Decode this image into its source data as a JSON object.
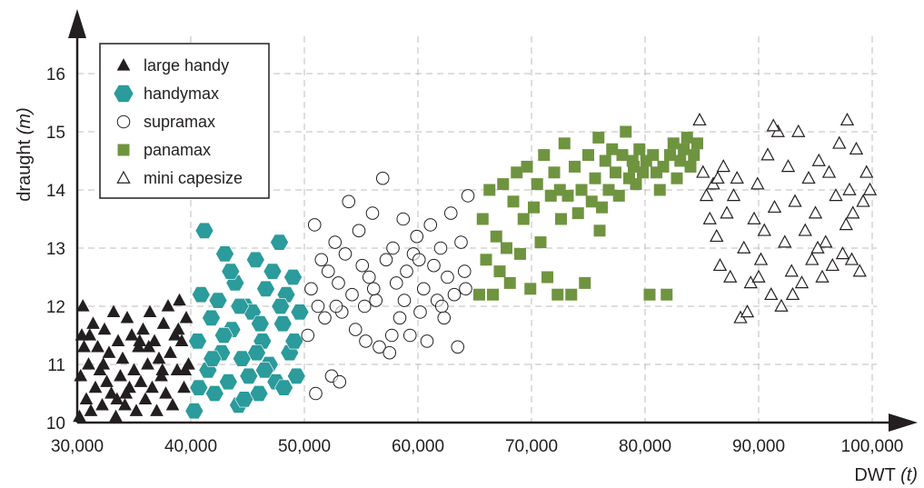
{
  "chart_data": {
    "type": "scatter",
    "xlabel": "DWT",
    "xlabel_unit": "(t)",
    "ylabel": "draught",
    "ylabel_unit": "(m)",
    "xlim": [
      30000,
      100000
    ],
    "ylim": [
      10,
      16.6
    ],
    "x_ticks": [
      30000,
      40000,
      50000,
      60000,
      70000,
      80000,
      90000,
      100000
    ],
    "x_tick_labels": [
      "30,000",
      "40,000",
      "50,000",
      "60,000",
      "70,000",
      "80,000",
      "90,000",
      "100,000"
    ],
    "y_ticks": [
      10,
      11,
      12,
      13,
      14,
      15,
      16
    ],
    "y_tick_labels": [
      "10",
      "11",
      "12",
      "13",
      "14",
      "15",
      "16"
    ],
    "grid": true,
    "legend_position": "top-left",
    "colors": {
      "handymax": "#2b9b9b",
      "panamax": "#6f9440",
      "ink": "#231f20",
      "grid": "#bdbdbd"
    },
    "series": [
      {
        "name": "large handy",
        "marker": "filled-triangle",
        "color": "#231f20",
        "points": [
          [
            30200,
            10.1
          ],
          [
            30300,
            10.8
          ],
          [
            30400,
            11.5
          ],
          [
            30500,
            12.0
          ],
          [
            30800,
            10.4
          ],
          [
            31000,
            11.0
          ],
          [
            31200,
            10.2
          ],
          [
            31400,
            11.7
          ],
          [
            31600,
            10.6
          ],
          [
            31800,
            11.3
          ],
          [
            32000,
            10.9
          ],
          [
            32200,
            10.3
          ],
          [
            32400,
            11.6
          ],
          [
            32600,
            10.7
          ],
          [
            32800,
            11.2
          ],
          [
            33000,
            10.5
          ],
          [
            33200,
            11.9
          ],
          [
            33400,
            10.1
          ],
          [
            33600,
            11.4
          ],
          [
            33800,
            10.8
          ],
          [
            34000,
            11.1
          ],
          [
            34200,
            10.3
          ],
          [
            34400,
            11.8
          ],
          [
            34600,
            10.6
          ],
          [
            34800,
            11.5
          ],
          [
            35000,
            10.9
          ],
          [
            35200,
            10.2
          ],
          [
            35400,
            11.3
          ],
          [
            35600,
            10.7
          ],
          [
            35800,
            11.6
          ],
          [
            36000,
            10.4
          ],
          [
            36200,
            11.0
          ],
          [
            36400,
            11.9
          ],
          [
            36600,
            10.6
          ],
          [
            36800,
            11.4
          ],
          [
            37000,
            10.2
          ],
          [
            37200,
            11.1
          ],
          [
            37400,
            10.8
          ],
          [
            37600,
            11.7
          ],
          [
            37800,
            10.5
          ],
          [
            38000,
            12.0
          ],
          [
            38200,
            11.2
          ],
          [
            38400,
            10.3
          ],
          [
            38600,
            11.5
          ],
          [
            38800,
            10.9
          ],
          [
            39000,
            12.1
          ],
          [
            39200,
            11.4
          ],
          [
            39400,
            10.6
          ],
          [
            39600,
            11.8
          ],
          [
            39800,
            11.0
          ],
          [
            31100,
            11.5
          ],
          [
            33500,
            10.4
          ],
          [
            35500,
            11.4
          ],
          [
            37500,
            10.9
          ],
          [
            38900,
            11.6
          ],
          [
            32300,
            11.0
          ],
          [
            34300,
            10.5
          ],
          [
            36300,
            11.3
          ],
          [
            30600,
            11.3
          ],
          [
            39500,
            10.9
          ]
        ]
      },
      {
        "name": "handymax",
        "marker": "filled-hexagon",
        "color": "#2b9b9b",
        "points": [
          [
            40300,
            10.2
          ],
          [
            40600,
            11.4
          ],
          [
            40900,
            12.2
          ],
          [
            41200,
            13.3
          ],
          [
            41500,
            10.9
          ],
          [
            41800,
            11.8
          ],
          [
            42100,
            10.5
          ],
          [
            42400,
            12.1
          ],
          [
            42700,
            11.2
          ],
          [
            43000,
            12.9
          ],
          [
            43300,
            10.7
          ],
          [
            43600,
            11.6
          ],
          [
            43900,
            12.4
          ],
          [
            44200,
            10.3
          ],
          [
            44500,
            11.1
          ],
          [
            44800,
            12.0
          ],
          [
            45100,
            10.8
          ],
          [
            45400,
            11.9
          ],
          [
            45700,
            12.8
          ],
          [
            46000,
            10.5
          ],
          [
            46300,
            11.4
          ],
          [
            46600,
            12.3
          ],
          [
            46900,
            11.0
          ],
          [
            47200,
            12.6
          ],
          [
            47500,
            10.7
          ],
          [
            47800,
            13.1
          ],
          [
            48100,
            11.7
          ],
          [
            48400,
            12.2
          ],
          [
            48700,
            11.2
          ],
          [
            49000,
            12.5
          ],
          [
            49300,
            10.8
          ],
          [
            49600,
            11.9
          ],
          [
            40700,
            10.6
          ],
          [
            42900,
            11.5
          ],
          [
            44700,
            10.4
          ],
          [
            46500,
            10.9
          ],
          [
            48200,
            10.6
          ],
          [
            43500,
            12.6
          ],
          [
            45800,
            11.2
          ],
          [
            47900,
            12.0
          ],
          [
            49100,
            11.4
          ],
          [
            41900,
            11.1
          ],
          [
            44300,
            12.0
          ],
          [
            46100,
            11.7
          ]
        ]
      },
      {
        "name": "supramax",
        "marker": "open-circle",
        "color": "#231f20",
        "points": [
          [
            50300,
            11.5
          ],
          [
            50600,
            12.3
          ],
          [
            50900,
            13.4
          ],
          [
            51200,
            12.0
          ],
          [
            51500,
            12.8
          ],
          [
            51800,
            11.8
          ],
          [
            52100,
            12.6
          ],
          [
            52400,
            10.8
          ],
          [
            52700,
            13.1
          ],
          [
            53000,
            12.4
          ],
          [
            53300,
            11.9
          ],
          [
            53600,
            12.9
          ],
          [
            53900,
            13.8
          ],
          [
            54200,
            12.2
          ],
          [
            54500,
            11.6
          ],
          [
            54800,
            13.3
          ],
          [
            55100,
            12.7
          ],
          [
            55400,
            11.4
          ],
          [
            55700,
            12.5
          ],
          [
            56000,
            13.6
          ],
          [
            56300,
            12.1
          ],
          [
            56600,
            11.3
          ],
          [
            56900,
            14.2
          ],
          [
            57200,
            12.8
          ],
          [
            57500,
            11.2
          ],
          [
            57800,
            13.0
          ],
          [
            58100,
            12.4
          ],
          [
            58400,
            11.8
          ],
          [
            58700,
            13.5
          ],
          [
            59000,
            12.6
          ],
          [
            59300,
            11.5
          ],
          [
            59600,
            12.9
          ],
          [
            59900,
            13.2
          ],
          [
            60200,
            11.9
          ],
          [
            60500,
            12.3
          ],
          [
            60800,
            11.4
          ],
          [
            61100,
            13.4
          ],
          [
            61400,
            12.7
          ],
          [
            61700,
            12.1
          ],
          [
            62000,
            13.0
          ],
          [
            62300,
            11.8
          ],
          [
            62600,
            12.5
          ],
          [
            62900,
            13.6
          ],
          [
            63200,
            12.2
          ],
          [
            63500,
            11.3
          ],
          [
            63800,
            13.1
          ],
          [
            64100,
            12.6
          ],
          [
            64400,
            13.9
          ],
          [
            51000,
            10.5
          ],
          [
            53100,
            10.7
          ],
          [
            55300,
            12.0
          ],
          [
            57700,
            11.5
          ],
          [
            60100,
            12.8
          ],
          [
            62100,
            12.0
          ],
          [
            64200,
            12.3
          ],
          [
            52800,
            12.0
          ],
          [
            56100,
            12.3
          ],
          [
            58800,
            12.1
          ]
        ]
      },
      {
        "name": "panamax",
        "marker": "filled-square",
        "color": "#6f9440",
        "points": [
          [
            65400,
            12.2
          ],
          [
            65700,
            13.5
          ],
          [
            66000,
            12.8
          ],
          [
            66300,
            14.0
          ],
          [
            66600,
            12.2
          ],
          [
            66900,
            13.2
          ],
          [
            67200,
            12.6
          ],
          [
            67500,
            14.1
          ],
          [
            67800,
            13.0
          ],
          [
            68100,
            12.4
          ],
          [
            68400,
            13.8
          ],
          [
            68700,
            14.3
          ],
          [
            69000,
            12.9
          ],
          [
            69300,
            13.5
          ],
          [
            69600,
            14.4
          ],
          [
            69900,
            12.3
          ],
          [
            70200,
            13.7
          ],
          [
            70500,
            14.1
          ],
          [
            70800,
            13.1
          ],
          [
            71100,
            14.6
          ],
          [
            71400,
            12.5
          ],
          [
            71700,
            13.9
          ],
          [
            72000,
            14.3
          ],
          [
            72300,
            12.2
          ],
          [
            72600,
            13.5
          ],
          [
            72900,
            14.8
          ],
          [
            73200,
            13.9
          ],
          [
            73500,
            12.2
          ],
          [
            73800,
            14.4
          ],
          [
            74100,
            13.6
          ],
          [
            74400,
            14.0
          ],
          [
            74700,
            12.4
          ],
          [
            75000,
            14.6
          ],
          [
            75300,
            13.8
          ],
          [
            75600,
            14.2
          ],
          [
            75900,
            14.9
          ],
          [
            76200,
            13.7
          ],
          [
            76500,
            14.5
          ],
          [
            76800,
            14.0
          ],
          [
            77100,
            14.7
          ],
          [
            77400,
            14.3
          ],
          [
            77700,
            13.9
          ],
          [
            78000,
            14.6
          ],
          [
            78300,
            15.0
          ],
          [
            78600,
            14.2
          ],
          [
            78900,
            14.5
          ],
          [
            79200,
            14.1
          ],
          [
            79500,
            14.7
          ],
          [
            79800,
            14.3
          ],
          [
            80100,
            14.5
          ],
          [
            80400,
            12.2
          ],
          [
            80700,
            14.6
          ],
          [
            81000,
            14.3
          ],
          [
            81300,
            14.0
          ],
          [
            81600,
            14.4
          ],
          [
            81900,
            12.2
          ],
          [
            82200,
            14.6
          ],
          [
            82500,
            14.8
          ],
          [
            82800,
            14.2
          ],
          [
            83100,
            14.5
          ],
          [
            83400,
            14.7
          ],
          [
            83700,
            14.9
          ],
          [
            84000,
            14.4
          ],
          [
            84300,
            14.6
          ],
          [
            84600,
            14.8
          ],
          [
            72500,
            14.0
          ],
          [
            76000,
            13.3
          ],
          [
            79000,
            14.4
          ]
        ]
      },
      {
        "name": "mini capesize",
        "marker": "open-triangle",
        "color": "#231f20",
        "points": [
          [
            84800,
            15.2
          ],
          [
            85100,
            14.3
          ],
          [
            85400,
            13.9
          ],
          [
            85700,
            13.5
          ],
          [
            86000,
            14.1
          ],
          [
            86300,
            13.2
          ],
          [
            86600,
            12.7
          ],
          [
            86900,
            14.4
          ],
          [
            87200,
            13.6
          ],
          [
            87500,
            12.5
          ],
          [
            87800,
            13.9
          ],
          [
            88100,
            14.2
          ],
          [
            88400,
            11.8
          ],
          [
            88700,
            13.0
          ],
          [
            89000,
            11.9
          ],
          [
            89300,
            12.4
          ],
          [
            89600,
            13.5
          ],
          [
            89900,
            14.1
          ],
          [
            90200,
            12.8
          ],
          [
            90500,
            13.3
          ],
          [
            90800,
            14.6
          ],
          [
            91100,
            12.2
          ],
          [
            91400,
            13.7
          ],
          [
            91700,
            15.0
          ],
          [
            92000,
            12.0
          ],
          [
            92300,
            13.1
          ],
          [
            92600,
            14.4
          ],
          [
            92900,
            12.6
          ],
          [
            93200,
            13.8
          ],
          [
            93500,
            15.0
          ],
          [
            93800,
            12.4
          ],
          [
            94100,
            13.3
          ],
          [
            94400,
            14.2
          ],
          [
            94700,
            12.8
          ],
          [
            95000,
            13.6
          ],
          [
            95300,
            14.5
          ],
          [
            95600,
            12.5
          ],
          [
            95900,
            13.1
          ],
          [
            96200,
            14.3
          ],
          [
            96500,
            12.7
          ],
          [
            96800,
            13.9
          ],
          [
            97100,
            14.8
          ],
          [
            97400,
            12.9
          ],
          [
            97700,
            13.4
          ],
          [
            98000,
            14.0
          ],
          [
            98300,
            13.6
          ],
          [
            98600,
            14.7
          ],
          [
            98900,
            12.6
          ],
          [
            99200,
            13.8
          ],
          [
            99500,
            14.3
          ],
          [
            99800,
            14.0
          ],
          [
            91300,
            15.1
          ],
          [
            97800,
            15.2
          ],
          [
            86400,
            14.2
          ],
          [
            93000,
            12.2
          ],
          [
            95200,
            13.0
          ],
          [
            98200,
            12.8
          ],
          [
            90000,
            12.5
          ]
        ]
      }
    ]
  }
}
